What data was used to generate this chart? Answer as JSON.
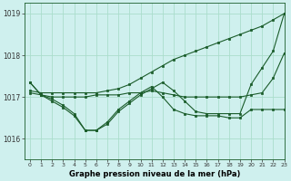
{
  "background_color": "#cff0ee",
  "grid_color": "#aaddcc",
  "line_color": "#1a5c2a",
  "marker_color": "#1a5c2a",
  "xlabel": "Graphe pression niveau de la mer (hPa)",
  "xlim": [
    -0.5,
    23
  ],
  "ylim": [
    1015.5,
    1019.25
  ],
  "yticks": [
    1016,
    1017,
    1018,
    1019
  ],
  "xticks": [
    0,
    1,
    2,
    3,
    4,
    5,
    6,
    7,
    8,
    9,
    10,
    11,
    12,
    13,
    14,
    15,
    16,
    17,
    18,
    19,
    20,
    21,
    22,
    23
  ],
  "series": [
    {
      "x": [
        0,
        1,
        2,
        3,
        4,
        5,
        6,
        7,
        8,
        9,
        10,
        11,
        12,
        13,
        14,
        15,
        16,
        17,
        18,
        19,
        20,
        21,
        22,
        23
      ],
      "y": [
        1017.15,
        1017.1,
        1017.1,
        1017.1,
        1017.1,
        1017.1,
        1017.1,
        1017.15,
        1017.2,
        1017.3,
        1017.45,
        1017.6,
        1017.75,
        1017.9,
        1018.0,
        1018.1,
        1018.2,
        1018.3,
        1018.4,
        1018.5,
        1018.6,
        1018.7,
        1018.85,
        1019.0
      ]
    },
    {
      "x": [
        0,
        1,
        2,
        3,
        4,
        5,
        6,
        7,
        8,
        9,
        10,
        11,
        12,
        13,
        14,
        15,
        16,
        17,
        18,
        19,
        20,
        21,
        22,
        23
      ],
      "y": [
        1017.1,
        1017.05,
        1017.0,
        1017.0,
        1017.0,
        1017.0,
        1017.05,
        1017.05,
        1017.05,
        1017.1,
        1017.1,
        1017.15,
        1017.1,
        1017.05,
        1017.0,
        1017.0,
        1017.0,
        1017.0,
        1017.0,
        1017.0,
        1017.05,
        1017.1,
        1017.45,
        1018.05
      ]
    },
    {
      "x": [
        0,
        1,
        2,
        3,
        4,
        5,
        6,
        7,
        8,
        9,
        10,
        11,
        12,
        13,
        14,
        15,
        16,
        17,
        18,
        19,
        20,
        21,
        22,
        23
      ],
      "y": [
        1017.35,
        1017.05,
        1016.9,
        1016.75,
        1016.55,
        1016.2,
        1016.2,
        1016.35,
        1016.65,
        1016.85,
        1017.05,
        1017.2,
        1017.35,
        1017.15,
        1016.9,
        1016.65,
        1016.6,
        1016.6,
        1016.6,
        1016.6,
        1017.3,
        1017.7,
        1018.1,
        1019.0
      ]
    },
    {
      "x": [
        0,
        1,
        2,
        3,
        4,
        5,
        6,
        7,
        8,
        9,
        10,
        11,
        12,
        13,
        14,
        15,
        16,
        17,
        18,
        19,
        20,
        21,
        22,
        23
      ],
      "y": [
        1017.35,
        1017.05,
        1016.95,
        1016.8,
        1016.6,
        1016.2,
        1016.2,
        1016.4,
        1016.7,
        1016.9,
        1017.1,
        1017.25,
        1017.0,
        1016.7,
        1016.6,
        1016.55,
        1016.55,
        1016.55,
        1016.5,
        1016.5,
        1016.7,
        1016.7,
        1016.7,
        1016.7
      ]
    }
  ]
}
